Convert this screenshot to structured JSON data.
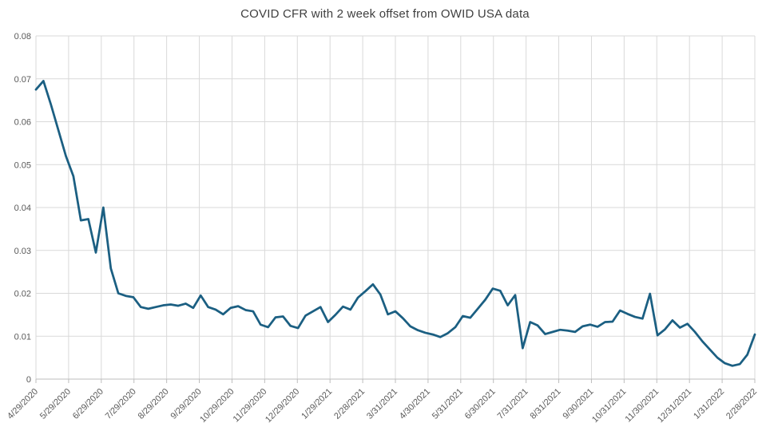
{
  "title": "COVID CFR with 2 week offset from OWID USA data",
  "colors": {
    "line": "#1b5f82",
    "grid": "#d9d9d9",
    "axis": "#bdbdbd",
    "tick_text": "#595959",
    "title_text": "#3f3f3f",
    "background": "#ffffff"
  },
  "chart_data": {
    "type": "line",
    "title": "COVID CFR with 2 week offset from OWID USA data",
    "xlabel": "",
    "ylabel": "",
    "ylim": [
      0,
      0.08
    ],
    "grid": true,
    "legend": "none",
    "y_tick_labels": [
      "0",
      "0.01",
      "0.02",
      "0.03",
      "0.04",
      "0.05",
      "0.06",
      "0.07",
      "0.08"
    ],
    "y_tick_values": [
      0,
      0.01,
      0.02,
      0.03,
      0.04,
      0.05,
      0.06,
      0.07,
      0.08
    ],
    "x_tick_labels": [
      "4/29/2020",
      "5/29/2020",
      "6/29/2020",
      "7/29/2020",
      "8/29/2020",
      "9/29/2020",
      "10/29/2020",
      "11/29/2020",
      "12/29/2020",
      "1/29/2021",
      "2/28/2021",
      "3/31/2021",
      "4/30/2021",
      "5/31/2021",
      "6/30/2021",
      "7/31/2021",
      "8/31/2021",
      "9/30/2021",
      "10/31/2021",
      "11/30/2021",
      "12/31/2021",
      "1/31/2022",
      "2/28/2022"
    ],
    "series": [
      {
        "name": "CFR",
        "dates": [
          "4/29/2020",
          "5/6/2020",
          "5/13/2020",
          "5/20/2020",
          "5/27/2020",
          "6/3/2020",
          "6/10/2020",
          "6/17/2020",
          "6/24/2020",
          "7/1/2020",
          "7/8/2020",
          "7/15/2020",
          "7/22/2020",
          "7/29/2020",
          "8/5/2020",
          "8/12/2020",
          "8/19/2020",
          "8/26/2020",
          "9/2/2020",
          "9/9/2020",
          "9/16/2020",
          "9/23/2020",
          "9/30/2020",
          "10/7/2020",
          "10/14/2020",
          "10/21/2020",
          "10/28/2020",
          "11/4/2020",
          "11/11/2020",
          "11/18/2020",
          "11/25/2020",
          "12/2/2020",
          "12/9/2020",
          "12/16/2020",
          "12/23/2020",
          "12/30/2020",
          "1/6/2021",
          "1/13/2021",
          "1/20/2021",
          "1/27/2021",
          "2/3/2021",
          "2/10/2021",
          "2/17/2021",
          "2/24/2021",
          "3/3/2021",
          "3/10/2021",
          "3/17/2021",
          "3/24/2021",
          "3/31/2021",
          "4/7/2021",
          "4/14/2021",
          "4/21/2021",
          "4/28/2021",
          "5/5/2021",
          "5/12/2021",
          "5/19/2021",
          "5/26/2021",
          "6/2/2021",
          "6/9/2021",
          "6/16/2021",
          "6/23/2021",
          "6/30/2021",
          "7/7/2021",
          "7/14/2021",
          "7/21/2021",
          "7/28/2021",
          "8/4/2021",
          "8/11/2021",
          "8/18/2021",
          "8/25/2021",
          "9/1/2021",
          "9/8/2021",
          "9/15/2021",
          "9/22/2021",
          "9/29/2021",
          "10/6/2021",
          "10/13/2021",
          "10/20/2021",
          "10/27/2021",
          "11/3/2021",
          "11/10/2021",
          "11/17/2021",
          "11/24/2021",
          "12/1/2021",
          "12/8/2021",
          "12/15/2021",
          "12/22/2021",
          "12/29/2021",
          "1/5/2022",
          "1/12/2022",
          "1/19/2022",
          "1/26/2022",
          "2/2/2022",
          "2/9/2022",
          "2/16/2022",
          "2/23/2022",
          "3/2/2022"
        ],
        "values": [
          0.0675,
          0.0695,
          0.064,
          0.058,
          0.052,
          0.0473,
          0.037,
          0.0373,
          0.0295,
          0.04,
          0.0258,
          0.02,
          0.0194,
          0.0191,
          0.0168,
          0.0164,
          0.0168,
          0.0172,
          0.0174,
          0.0171,
          0.0176,
          0.0166,
          0.0195,
          0.0168,
          0.0162,
          0.0151,
          0.0166,
          0.017,
          0.0161,
          0.0158,
          0.0127,
          0.0121,
          0.0144,
          0.0146,
          0.0124,
          0.0119,
          0.0148,
          0.0158,
          0.0168,
          0.0133,
          0.015,
          0.0169,
          0.0162,
          0.019,
          0.0205,
          0.0221,
          0.0197,
          0.0151,
          0.0158,
          0.0142,
          0.0123,
          0.0114,
          0.0108,
          0.0104,
          0.0098,
          0.0107,
          0.0121,
          0.0147,
          0.0143,
          0.0164,
          0.0185,
          0.0211,
          0.0206,
          0.0172,
          0.0196,
          0.0072,
          0.0133,
          0.0125,
          0.0105,
          0.011,
          0.0115,
          0.0113,
          0.011,
          0.0123,
          0.0127,
          0.0122,
          0.0133,
          0.0134,
          0.016,
          0.0152,
          0.0145,
          0.0141,
          0.0199,
          0.0102,
          0.0116,
          0.0137,
          0.012,
          0.0129,
          0.011,
          0.0088,
          0.0069,
          0.005,
          0.0037,
          0.0031,
          0.0035,
          0.0057,
          0.0104
        ]
      }
    ]
  }
}
